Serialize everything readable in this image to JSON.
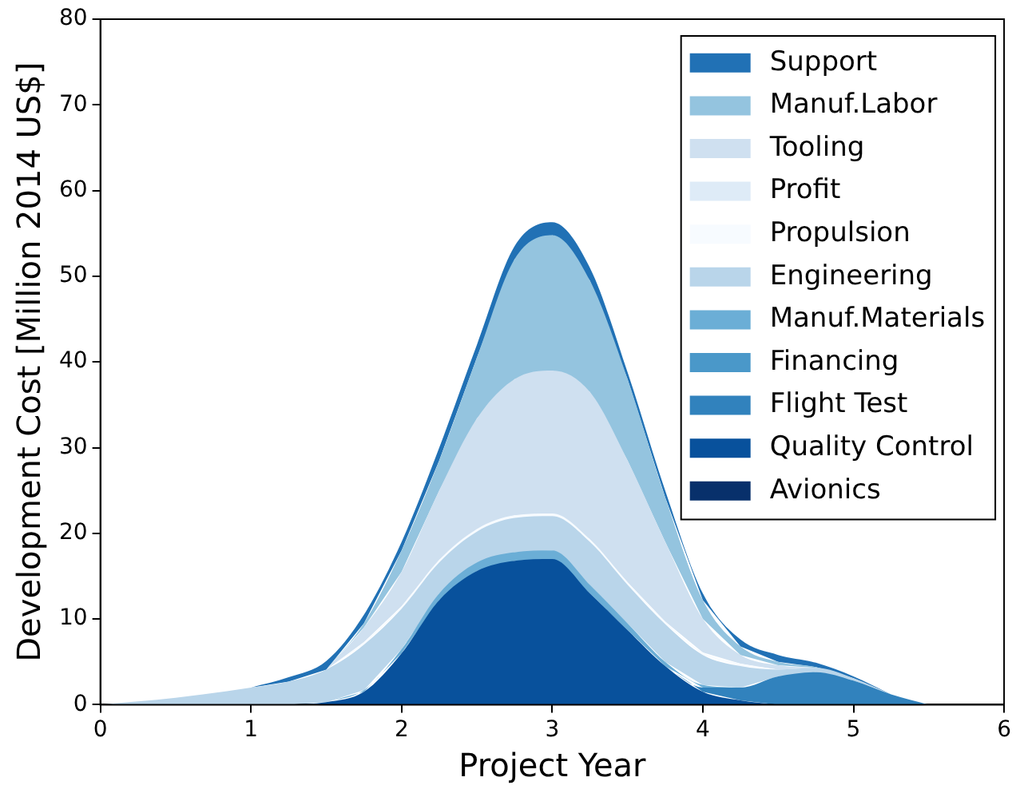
{
  "chart_data": {
    "type": "area",
    "stacked": true,
    "xlabel": "Project Year",
    "ylabel": "Development Cost [Million 2014 US$]",
    "x": [
      0,
      0.5,
      1,
      1.25,
      1.5,
      1.75,
      2,
      2.25,
      2.5,
      2.75,
      3,
      3.25,
      3.5,
      3.75,
      4,
      4.25,
      4.5,
      4.75,
      5,
      5.25,
      5.5
    ],
    "series": [
      {
        "name": "Avionics",
        "color": "#08306b",
        "values": [
          null,
          null,
          null,
          null,
          null,
          null,
          null,
          null,
          null,
          null,
          null,
          null,
          null,
          null,
          null,
          null,
          null,
          null,
          null,
          null,
          null
        ]
      },
      {
        "name": "Quality Control",
        "color": "#08519c",
        "values": [
          null,
          null,
          null,
          0,
          0.3,
          1.5,
          6,
          12.2,
          15.6,
          16.8,
          17,
          13,
          8.7,
          4.5,
          1.5,
          0.5,
          0,
          null,
          null,
          null,
          null
        ]
      },
      {
        "name": "Flight Test",
        "color": "#3182bd",
        "values": [
          null,
          null,
          null,
          null,
          null,
          null,
          null,
          null,
          null,
          null,
          null,
          null,
          null,
          0,
          0.5,
          1.5,
          3.3,
          3.8,
          2.8,
          1.2,
          0
        ]
      },
      {
        "name": "Financing",
        "color": "#4a98c9",
        "values": [
          null,
          null,
          null,
          null,
          null,
          null,
          null,
          null,
          null,
          null,
          null,
          null,
          null,
          null,
          null,
          null,
          null,
          null,
          null,
          null,
          null
        ]
      },
      {
        "name": "Manuf.Materials",
        "color": "#6baed6",
        "values": [
          null,
          null,
          null,
          null,
          0,
          0.2,
          0.5,
          0.8,
          1,
          1,
          1,
          1,
          0.8,
          0.5,
          0.3,
          0,
          null,
          null,
          null,
          null,
          null
        ]
      },
      {
        "name": "Engineering",
        "color": "#b9d5ea",
        "values": [
          0,
          0.8,
          2.0,
          2.7,
          3.8,
          5.3,
          4.7,
          3.6,
          3.6,
          4,
          4,
          5,
          4.5,
          4.4,
          3.5,
          2.5,
          0.8,
          0.5,
          0.3,
          0,
          null
        ]
      },
      {
        "name": "Propulsion",
        "color": "#f7fbff",
        "values": [
          null,
          null,
          null,
          null,
          0,
          0.3,
          0.3,
          0.3,
          0.3,
          0.3,
          0.3,
          0.3,
          0.3,
          0.3,
          0.3,
          0.3,
          0,
          null,
          null,
          null,
          null
        ]
      },
      {
        "name": "Profit",
        "color": "#deebf7",
        "values": [
          null,
          null,
          null,
          null,
          null,
          null,
          null,
          null,
          null,
          null,
          null,
          null,
          null,
          null,
          null,
          null,
          null,
          null,
          null,
          null,
          null
        ]
      },
      {
        "name": "Tooling",
        "color": "#cfe0f0",
        "values": [
          null,
          null,
          null,
          null,
          0,
          1.7,
          4,
          8.1,
          12.9,
          15.9,
          16.7,
          17.2,
          14.2,
          9.3,
          3.9,
          1.0,
          0.5,
          0,
          null,
          null,
          null
        ]
      },
      {
        "name": "Manuf.Labor",
        "color": "#94c4df",
        "values": [
          null,
          null,
          null,
          null,
          0,
          0.5,
          2.5,
          3.5,
          7.1,
          14,
          15.8,
          13,
          9.5,
          5.2,
          2.2,
          1.0,
          0.4,
          0.1,
          0,
          null,
          null
        ]
      },
      {
        "name": "Support",
        "color": "#2171b5",
        "values": [
          null,
          null,
          0,
          0.5,
          1,
          1,
          1,
          1.5,
          1.5,
          1.5,
          1.5,
          1.5,
          0.8,
          0.8,
          0.8,
          0.8,
          0.8,
          0.5,
          0.2,
          0,
          null
        ]
      }
    ],
    "xlim": [
      0,
      6
    ],
    "xticks": [
      0,
      1,
      2,
      3,
      4,
      5,
      6
    ],
    "ylim": [
      0,
      80
    ],
    "yticks": [
      0,
      10,
      20,
      30,
      40,
      50,
      60,
      70,
      80
    ],
    "grid": false,
    "legend": "top right"
  }
}
